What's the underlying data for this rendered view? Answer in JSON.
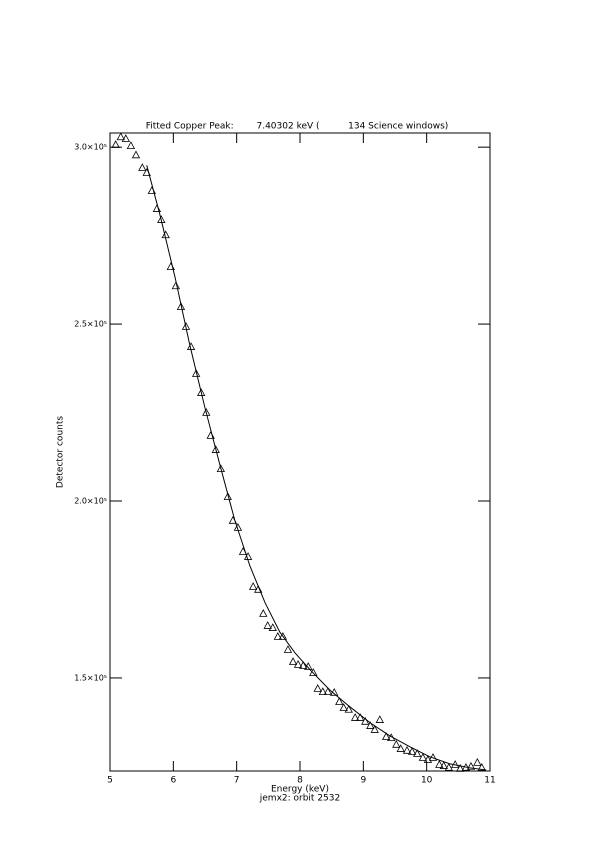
{
  "chart_data": {
    "type": "scatter",
    "title": "Fitted Copper Peak:        7.40302 keV (          134 Science windows)",
    "xlabel": "Energy (keV)",
    "subtitle": "jemx2: orbit 2532",
    "ylabel": "Detector counts",
    "xlim": [
      5,
      11
    ],
    "xticks": [
      5,
      6,
      7,
      8,
      9,
      10,
      11
    ],
    "ylim": [
      123700,
      304000
    ],
    "yticks": [
      {
        "value": 150000,
        "label": "1.5×10⁵"
      },
      {
        "value": 200000,
        "label": "2.0×10⁵"
      },
      {
        "value": 250000,
        "label": "2.5×10⁵"
      },
      {
        "value": 300000,
        "label": "3.0×10⁵"
      }
    ],
    "color": "#000000",
    "series": [
      {
        "type": "scatter",
        "marker": "triangle",
        "x": [
          5.09,
          5.17,
          5.25,
          5.33,
          5.41,
          5.51,
          5.58,
          5.66,
          5.74,
          5.81,
          5.88,
          5.96,
          6.04,
          6.12,
          6.2,
          6.28,
          6.36,
          6.44,
          6.52,
          6.59,
          6.67,
          6.75,
          6.86,
          6.94,
          7.02,
          7.1,
          7.18,
          7.26,
          7.34,
          7.42,
          7.49,
          7.57,
          7.65,
          7.73,
          7.81,
          7.89,
          7.97,
          8.05,
          8.13,
          8.21,
          8.28,
          8.36,
          8.44,
          8.54,
          8.62,
          8.69,
          8.77,
          8.87,
          8.95,
          9.03,
          9.11,
          9.18,
          9.26,
          9.36,
          9.44,
          9.52,
          9.59,
          9.69,
          9.77,
          9.85,
          9.94,
          10.02,
          10.1,
          10.2,
          10.27,
          10.35,
          10.45,
          10.53,
          10.62,
          10.7,
          10.8,
          10.87
        ],
        "values": [
          300600,
          302800,
          302300,
          300300,
          297700,
          294100,
          292700,
          287600,
          282500,
          279400,
          275100,
          266100,
          260700,
          254800,
          249200,
          243500,
          235900,
          230500,
          224900,
          218400,
          214400,
          209000,
          201100,
          194400,
          192400,
          185600,
          184200,
          175700,
          174900,
          168100,
          164700,
          164100,
          161600,
          161600,
          157900,
          154500,
          153700,
          153400,
          153100,
          151400,
          146900,
          146000,
          146000,
          145800,
          143200,
          141500,
          141000,
          138700,
          138700,
          137600,
          136400,
          135300,
          138100,
          133300,
          133000,
          131100,
          129900,
          129400,
          129100,
          128500,
          127400,
          126800,
          127400,
          125400,
          125100,
          124600,
          125400,
          124300,
          124600,
          124900,
          126000,
          124600
        ]
      },
      {
        "type": "line",
        "x": [
          5.58,
          5.79,
          6.03,
          6.26,
          6.5,
          6.74,
          6.97,
          7.21,
          7.45,
          7.68,
          7.92,
          8.16,
          8.47,
          8.79,
          9.11,
          9.42,
          9.74,
          10.05,
          10.37,
          10.68,
          10.94
        ],
        "values": [
          294900,
          280800,
          263000,
          244100,
          226300,
          209900,
          194600,
          181600,
          171200,
          163000,
          157100,
          152300,
          146600,
          141800,
          137300,
          133600,
          130500,
          127700,
          125700,
          124600,
          124000
        ]
      }
    ]
  }
}
